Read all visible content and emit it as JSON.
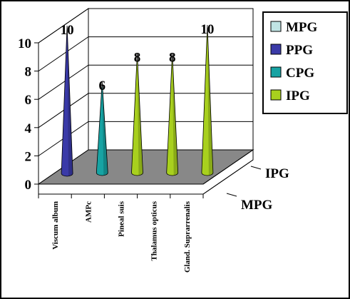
{
  "chart_data": {
    "type": "bar",
    "subtype": "3d-cone",
    "categories": [
      "Viscum album",
      "AMPc",
      "Pineal suis",
      "Thalamus opticus",
      "Gland. Suprarrenalis"
    ],
    "series": [
      {
        "name": "MPG",
        "color": "#c0e4e4",
        "values": [
          null,
          null,
          null,
          null,
          null
        ]
      },
      {
        "name": "PPG",
        "color": "#3a3aa8",
        "values": [
          10,
          null,
          null,
          null,
          null
        ]
      },
      {
        "name": "CPG",
        "color": "#17a3a3",
        "values": [
          null,
          6,
          null,
          null,
          null
        ]
      },
      {
        "name": "IPG",
        "color": "#a8d01e",
        "values": [
          null,
          null,
          8,
          8,
          10
        ]
      }
    ],
    "depth_labels": [
      "IPG",
      "MPG"
    ],
    "yticks": [
      0,
      2,
      4,
      6,
      8,
      10
    ],
    "ylim": [
      0,
      10
    ],
    "grid": true,
    "legend_position": "top-right"
  }
}
